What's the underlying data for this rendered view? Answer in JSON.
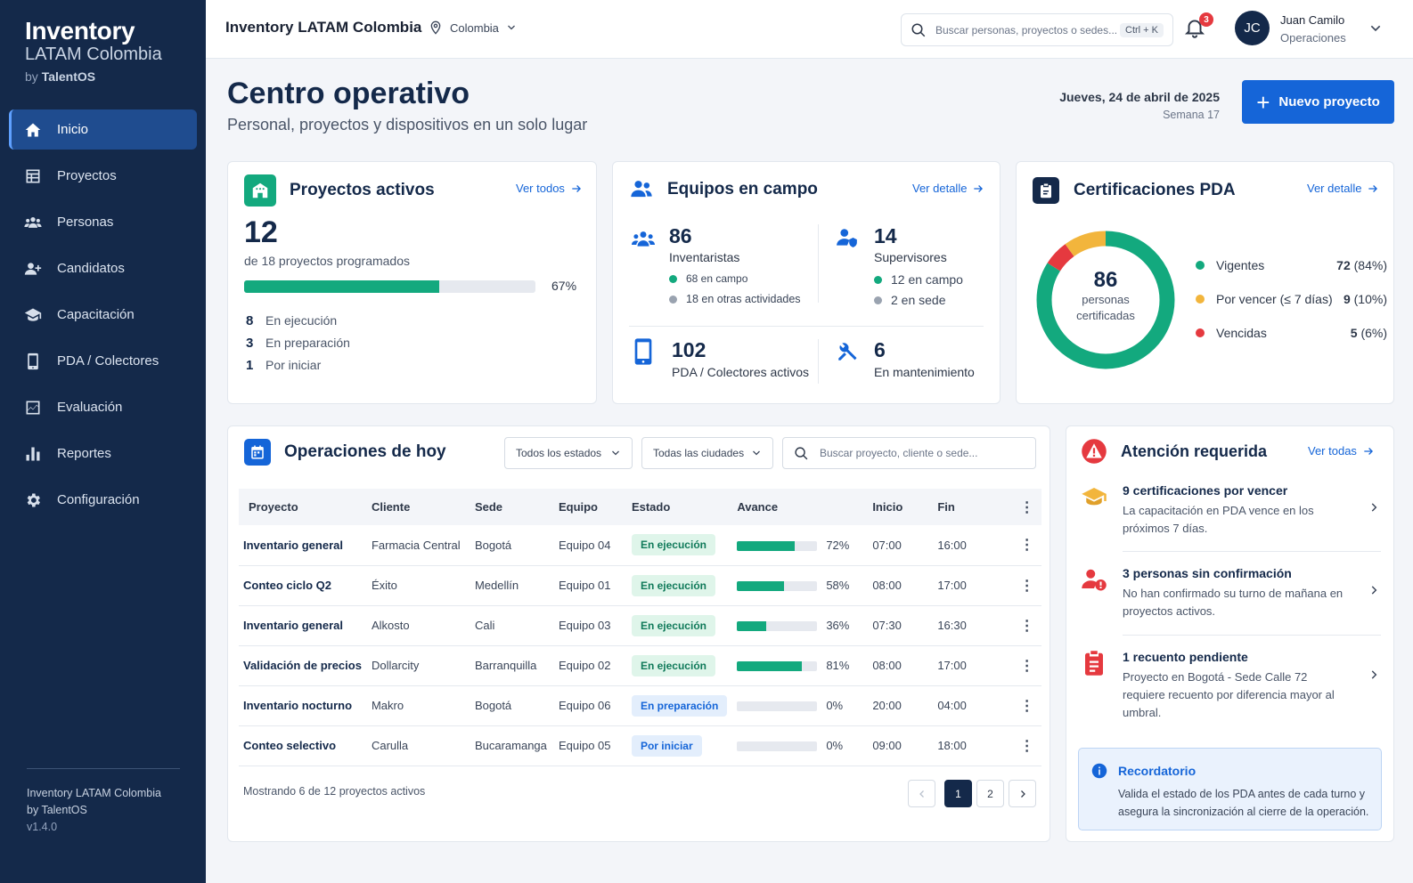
{
  "brand": {
    "title": "Inventory",
    "subtitle": "LATAM Colombia",
    "by": "by",
    "by_name": "TalentOS"
  },
  "nav": [
    {
      "label": "Inicio",
      "icon": "home-icon",
      "active": true
    },
    {
      "label": "Proyectos",
      "icon": "table-icon"
    },
    {
      "label": "Personas",
      "icon": "people-icon"
    },
    {
      "label": "Candidatos",
      "icon": "person-add-icon"
    },
    {
      "label": "Capacitación",
      "icon": "graduation-cap-icon"
    },
    {
      "label": "PDA / Colectores",
      "icon": "device-icon"
    },
    {
      "label": "Evaluación",
      "icon": "chart-area-icon"
    },
    {
      "label": "Reportes",
      "icon": "bar-chart-icon"
    },
    {
      "label": "Configuración",
      "icon": "gear-icon"
    }
  ],
  "sidebar_footer": {
    "line1": "Inventory LATAM Colombia",
    "line2": "by TalentOS",
    "version": "v1.4.0"
  },
  "topbar": {
    "title": "Inventory LATAM Colombia",
    "location": "Colombia",
    "search_placeholder": "Buscar personas, proyectos o sedes...",
    "shortcut": "Ctrl + K",
    "notifications": "3",
    "user_initials": "JC",
    "user_name": "Juan Camilo",
    "user_role": "Operaciones"
  },
  "header": {
    "title": "Centro operativo",
    "subtitle": "Personal, proyectos y dispositivos en un solo lugar",
    "date": "Jueves, 24 de abril de 2025",
    "week": "Semana 17",
    "new_project": "Nuevo proyecto"
  },
  "colors": {
    "accent": "#1565d8",
    "navy": "#14294a",
    "green": "#13a97e",
    "amber": "#f2b53c",
    "red": "#e5393f"
  },
  "proyectos": {
    "title": "Proyectos activos",
    "link": "Ver todos",
    "count": "12",
    "of_text": "de 18 proyectos programados",
    "progress_pct": 67,
    "progress_label": "67%",
    "stats": [
      {
        "n": "8",
        "label": "En ejecución"
      },
      {
        "n": "3",
        "label": "En preparación"
      },
      {
        "n": "1",
        "label": "Por iniciar"
      }
    ]
  },
  "equipos": {
    "title": "Equipos en campo",
    "link": "Ver detalle",
    "inv_count": "86",
    "inv_label": "Inventaristas",
    "inv_a": "68 en campo",
    "inv_b": "18 en otras actividades",
    "sup_count": "14",
    "sup_label": "Supervisores",
    "sup_a": "12 en campo",
    "sup_b": "2 en sede",
    "pda_count": "102",
    "pda_label": "PDA / Colectores activos",
    "mant_count": "6",
    "mant_label": "En mantenimiento"
  },
  "certs": {
    "title": "Certificaciones PDA",
    "link": "Ver detalle",
    "center_value": "86",
    "center_line1": "personas",
    "center_line2": "certificadas",
    "legend": [
      {
        "label": "Vigentes",
        "count": "72",
        "pct": "(84%)",
        "color": "#13a97e",
        "share": 84
      },
      {
        "label": "Por vencer (≤ 7 días)",
        "count": "9",
        "pct": "(10%)",
        "color": "#f2b53c",
        "share": 10
      },
      {
        "label": "Vencidas",
        "count": "5",
        "pct": "(6%)",
        "color": "#e5393f",
        "share": 6
      }
    ]
  },
  "ops": {
    "title": "Operaciones de hoy",
    "filter_state": "Todos los estados",
    "filter_city": "Todas las ciudades",
    "search_placeholder": "Buscar proyecto, cliente o sede...",
    "headers": [
      "Proyecto",
      "Cliente",
      "Sede",
      "Equipo",
      "Estado",
      "Avance",
      "Inicio",
      "Fin"
    ],
    "rows": [
      {
        "proyecto": "Inventario general",
        "cliente": "Farmacia Central",
        "sede": "Bogotá",
        "equipo": "Equipo 04",
        "estado": "En ejecución",
        "avance": 72,
        "avance_label": "72%",
        "inicio": "07:00",
        "fin": "16:00"
      },
      {
        "proyecto": "Conteo ciclo Q2",
        "cliente": "Éxito",
        "sede": "Medellín",
        "equipo": "Equipo 01",
        "estado": "En ejecución",
        "avance": 58,
        "avance_label": "58%",
        "inicio": "08:00",
        "fin": "17:00"
      },
      {
        "proyecto": "Inventario general",
        "cliente": "Alkosto",
        "sede": "Cali",
        "equipo": "Equipo 03",
        "estado": "En ejecución",
        "avance": 36,
        "avance_label": "36%",
        "inicio": "07:30",
        "fin": "16:30"
      },
      {
        "proyecto": "Validación de precios",
        "cliente": "Dollarcity",
        "sede": "Barranquilla",
        "equipo": "Equipo 02",
        "estado": "En ejecución",
        "avance": 81,
        "avance_label": "81%",
        "inicio": "08:00",
        "fin": "17:00"
      },
      {
        "proyecto": "Inventario nocturno",
        "cliente": "Makro",
        "sede": "Bogotá",
        "equipo": "Equipo 06",
        "estado": "En preparación",
        "avance": 0,
        "avance_label": "0%",
        "inicio": "20:00",
        "fin": "04:00"
      },
      {
        "proyecto": "Conteo selectivo",
        "cliente": "Carulla",
        "sede": "Bucaramanga",
        "equipo": "Equipo 05",
        "estado": "Por iniciar",
        "avance": 0,
        "avance_label": "0%",
        "inicio": "09:00",
        "fin": "18:00"
      }
    ],
    "showing": "Mostrando 6 de 12 proyectos activos",
    "pages": [
      "1",
      "2"
    ]
  },
  "attention": {
    "title": "Atención requerida",
    "link": "Ver todas",
    "items": [
      {
        "title": "9 certificaciones por vencer",
        "text": "La capacitación en PDA vence en los próximos 7 días."
      },
      {
        "title": "3 personas sin confirmación",
        "text": "No han confirmado su turno de mañana en proyectos activos."
      },
      {
        "title": "1 recuento pendiente",
        "text": "Proyecto en Bogotá - Sede Calle 72 requiere recuento por diferencia mayor al umbral."
      }
    ],
    "reminder_title": "Recordatorio",
    "reminder_text": "Valida el estado de los PDA antes de cada turno y asegura la sincronización al cierre de la operación."
  }
}
